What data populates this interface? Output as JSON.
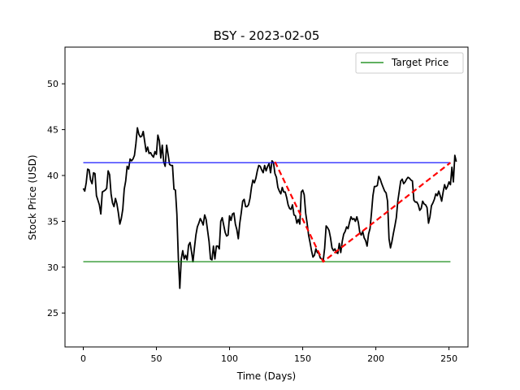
{
  "chart_data": {
    "type": "line",
    "title": "BSY - 2023-02-05",
    "xlabel": "Time (Days)",
    "ylabel": "Stock Price (USD)",
    "xlim": [
      -12.5,
      263
    ],
    "ylim": [
      21.3,
      54
    ],
    "x_ticks": [
      0,
      50,
      100,
      150,
      200,
      250
    ],
    "y_ticks": [
      25,
      30,
      35,
      40,
      45,
      50
    ],
    "grid": false,
    "legend": {
      "position": "upper right",
      "entries": [
        "Target Price"
      ]
    },
    "colors": {
      "price": "#000000",
      "target": "#008000",
      "resistance": "#0000ff",
      "trend": "#ff0000"
    },
    "price_series": {
      "points": [
        [
          0,
          38.6
        ],
        [
          1,
          38.3
        ],
        [
          2,
          39.2
        ],
        [
          3,
          40.7
        ],
        [
          4,
          40.6
        ],
        [
          5,
          39.5
        ],
        [
          6,
          39.1
        ],
        [
          7,
          40.3
        ],
        [
          8,
          40.2
        ],
        [
          9,
          37.8
        ],
        [
          10,
          37.3
        ],
        [
          11,
          36.8
        ],
        [
          12,
          35.8
        ],
        [
          13,
          38.2
        ],
        [
          14,
          38.3
        ],
        [
          15,
          38.4
        ],
        [
          16,
          38.6
        ],
        [
          17,
          40.5
        ],
        [
          18,
          40.1
        ],
        [
          19,
          38.0
        ],
        [
          20,
          37.0
        ],
        [
          21,
          36.6
        ],
        [
          22,
          37.5
        ],
        [
          23,
          36.9
        ],
        [
          24,
          35.9
        ],
        [
          25,
          34.7
        ],
        [
          26,
          35.3
        ],
        [
          27,
          36.3
        ],
        [
          28,
          38.5
        ],
        [
          29,
          39.4
        ],
        [
          30,
          41.0
        ],
        [
          31,
          40.7
        ],
        [
          32,
          41.8
        ],
        [
          33,
          41.6
        ],
        [
          34,
          41.8
        ],
        [
          35,
          42.2
        ],
        [
          36,
          43.5
        ],
        [
          37,
          45.2
        ],
        [
          38,
          44.5
        ],
        [
          39,
          44.2
        ],
        [
          40,
          44.3
        ],
        [
          41,
          44.8
        ],
        [
          42,
          43.7
        ],
        [
          43,
          42.6
        ],
        [
          44,
          43.1
        ],
        [
          45,
          42.4
        ],
        [
          46,
          42.5
        ],
        [
          47,
          42.2
        ],
        [
          48,
          42.0
        ],
        [
          49,
          42.6
        ],
        [
          50,
          42.3
        ],
        [
          51,
          44.4
        ],
        [
          52,
          43.8
        ],
        [
          53,
          41.9
        ],
        [
          54,
          43.3
        ],
        [
          55,
          41.5
        ],
        [
          56,
          41.0
        ],
        [
          57,
          43.3
        ],
        [
          58,
          42.3
        ],
        [
          59,
          41.2
        ],
        [
          60,
          41.1
        ],
        [
          61,
          41.1
        ],
        [
          62,
          38.5
        ],
        [
          63,
          38.4
        ],
        [
          64,
          35.8
        ],
        [
          65,
          31.0
        ],
        [
          66,
          27.7
        ],
        [
          67,
          30.9
        ],
        [
          68,
          31.8
        ],
        [
          69,
          30.9
        ],
        [
          70,
          31.3
        ],
        [
          71,
          30.8
        ],
        [
          72,
          32.4
        ],
        [
          73,
          32.7
        ],
        [
          74,
          31.7
        ],
        [
          75,
          30.6
        ],
        [
          76,
          32.1
        ],
        [
          77,
          33.5
        ],
        [
          78,
          34.4
        ],
        [
          79,
          34.8
        ],
        [
          80,
          35.3
        ],
        [
          81,
          35.0
        ],
        [
          82,
          34.6
        ],
        [
          83,
          35.7
        ],
        [
          84,
          35.2
        ],
        [
          85,
          34.0
        ],
        [
          86,
          32.8
        ],
        [
          87,
          30.9
        ],
        [
          88,
          30.8
        ],
        [
          89,
          32.3
        ],
        [
          90,
          30.9
        ],
        [
          91,
          32.3
        ],
        [
          92,
          32.3
        ],
        [
          93,
          32.0
        ],
        [
          94,
          35.0
        ],
        [
          95,
          35.4
        ],
        [
          96,
          34.6
        ],
        [
          97,
          33.8
        ],
        [
          98,
          33.4
        ],
        [
          99,
          33.5
        ],
        [
          100,
          35.6
        ],
        [
          101,
          35.1
        ],
        [
          102,
          35.8
        ],
        [
          103,
          35.9
        ],
        [
          104,
          34.7
        ],
        [
          105,
          34.1
        ],
        [
          106,
          33.1
        ],
        [
          107,
          34.8
        ],
        [
          108,
          35.9
        ],
        [
          109,
          37.2
        ],
        [
          110,
          37.4
        ],
        [
          111,
          36.6
        ],
        [
          112,
          36.6
        ],
        [
          113,
          36.8
        ],
        [
          114,
          37.5
        ],
        [
          115,
          38.7
        ],
        [
          116,
          39.5
        ],
        [
          117,
          39.2
        ],
        [
          118,
          39.7
        ],
        [
          119,
          40.5
        ],
        [
          120,
          41.1
        ],
        [
          121,
          41.0
        ],
        [
          122,
          40.6
        ],
        [
          123,
          40.3
        ],
        [
          124,
          41.1
        ],
        [
          125,
          40.5
        ],
        [
          126,
          41.0
        ],
        [
          127,
          41.3
        ],
        [
          128,
          40.3
        ],
        [
          129,
          41.6
        ],
        [
          130,
          41.4
        ],
        [
          131,
          40.2
        ],
        [
          132,
          39.8
        ],
        [
          133,
          38.7
        ],
        [
          134,
          38.3
        ],
        [
          135,
          38.0
        ],
        [
          136,
          38.7
        ],
        [
          137,
          38.2
        ],
        [
          138,
          38.2
        ],
        [
          139,
          37.6
        ],
        [
          140,
          36.8
        ],
        [
          141,
          36.4
        ],
        [
          142,
          36.3
        ],
        [
          143,
          36.8
        ],
        [
          144,
          35.7
        ],
        [
          145,
          35.6
        ],
        [
          146,
          34.8
        ],
        [
          147,
          35.2
        ],
        [
          148,
          34.7
        ],
        [
          149,
          38.2
        ],
        [
          150,
          38.4
        ],
        [
          151,
          37.9
        ],
        [
          152,
          35.9
        ],
        [
          153,
          34.8
        ],
        [
          154,
          33.5
        ],
        [
          155,
          32.7
        ],
        [
          156,
          31.8
        ],
        [
          157,
          31.1
        ],
        [
          158,
          31.3
        ],
        [
          159,
          32.0
        ],
        [
          160,
          31.6
        ],
        [
          161,
          31.5
        ],
        [
          162,
          31.0
        ],
        [
          163,
          30.9
        ],
        [
          164,
          30.7
        ],
        [
          165,
          32.1
        ],
        [
          166,
          34.5
        ],
        [
          167,
          34.3
        ],
        [
          168,
          34.0
        ],
        [
          169,
          33.2
        ],
        [
          170,
          32.1
        ],
        [
          171,
          31.8
        ],
        [
          172,
          32.0
        ],
        [
          173,
          31.6
        ],
        [
          174,
          31.5
        ],
        [
          175,
          32.6
        ],
        [
          176,
          31.6
        ],
        [
          177,
          32.8
        ],
        [
          178,
          33.6
        ],
        [
          179,
          33.9
        ],
        [
          180,
          34.4
        ],
        [
          181,
          34.2
        ],
        [
          182,
          34.9
        ],
        [
          183,
          35.5
        ],
        [
          184,
          35.2
        ],
        [
          185,
          35.3
        ],
        [
          186,
          35.0
        ],
        [
          187,
          35.5
        ],
        [
          188,
          34.9
        ],
        [
          189,
          33.8
        ],
        [
          190,
          33.5
        ],
        [
          191,
          33.9
        ],
        [
          192,
          33.2
        ],
        [
          193,
          32.9
        ],
        [
          194,
          32.3
        ],
        [
          195,
          33.6
        ],
        [
          196,
          34.2
        ],
        [
          197,
          35.9
        ],
        [
          198,
          37.8
        ],
        [
          199,
          38.8
        ],
        [
          200,
          38.8
        ],
        [
          201,
          38.9
        ],
        [
          202,
          39.9
        ],
        [
          203,
          39.6
        ],
        [
          204,
          39.1
        ],
        [
          205,
          38.7
        ],
        [
          206,
          38.3
        ],
        [
          207,
          38.1
        ],
        [
          208,
          37.2
        ],
        [
          209,
          33.1
        ],
        [
          210,
          32.1
        ],
        [
          211,
          32.8
        ],
        [
          212,
          33.7
        ],
        [
          213,
          34.5
        ],
        [
          214,
          35.4
        ],
        [
          215,
          37.2
        ],
        [
          216,
          38.3
        ],
        [
          217,
          39.4
        ],
        [
          218,
          39.6
        ],
        [
          219,
          39.1
        ],
        [
          220,
          39.3
        ],
        [
          221,
          39.6
        ],
        [
          222,
          39.8
        ],
        [
          223,
          39.7
        ],
        [
          224,
          39.5
        ],
        [
          225,
          39.4
        ],
        [
          226,
          37.3
        ],
        [
          227,
          37.1
        ],
        [
          228,
          37.1
        ],
        [
          229,
          36.8
        ],
        [
          230,
          36.2
        ],
        [
          231,
          36.4
        ],
        [
          232,
          37.2
        ],
        [
          233,
          36.9
        ],
        [
          234,
          36.8
        ],
        [
          235,
          36.5
        ],
        [
          236,
          34.8
        ],
        [
          237,
          35.5
        ],
        [
          238,
          36.7
        ],
        [
          239,
          37.0
        ],
        [
          240,
          37.4
        ],
        [
          241,
          38.0
        ],
        [
          242,
          37.8
        ],
        [
          243,
          38.3
        ],
        [
          244,
          37.8
        ],
        [
          245,
          37.2
        ],
        [
          246,
          38.2
        ],
        [
          247,
          39.0
        ],
        [
          248,
          38.5
        ],
        [
          249,
          38.8
        ],
        [
          250,
          39.3
        ],
        [
          251,
          39.0
        ],
        [
          252,
          40.9
        ],
        [
          253,
          39.3
        ],
        [
          254,
          42.2
        ],
        [
          255,
          41.5
        ]
      ]
    },
    "target_price": {
      "name": "Target Price",
      "value": 30.6,
      "x_range": [
        0,
        251
      ]
    },
    "resistance_line": {
      "value": 41.4,
      "x_range": [
        0,
        251
      ]
    },
    "trend_line": {
      "points": [
        [
          131,
          41.5
        ],
        [
          164,
          30.6
        ],
        [
          251,
          41.4
        ]
      ]
    }
  }
}
